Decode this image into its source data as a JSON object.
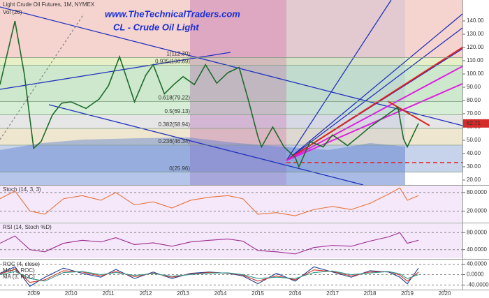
{
  "chart_data": [
    {
      "type": "line",
      "title": "Light Crude Oil Futures, 1M, NYMEX",
      "subtitle": "Vol (20)",
      "annotations": [
        "www.TheTechnicalTraders.com",
        "CL - Crude Oil Light"
      ],
      "x": [
        2008.1,
        2008.5,
        2008.75,
        2009.0,
        2009.2,
        2009.5,
        2009.75,
        2010.0,
        2010.4,
        2010.75,
        2011.0,
        2011.3,
        2011.7,
        2012.0,
        2012.2,
        2012.5,
        2012.75,
        2013.0,
        2013.3,
        2013.6,
        2013.9,
        2014.2,
        2014.5,
        2014.75,
        2015.0,
        2015.1,
        2015.4,
        2015.7,
        2016.0,
        2016.1,
        2016.4,
        2016.75,
        2017.0,
        2017.4,
        2017.75,
        2018.0,
        2018.4,
        2018.75,
        2018.9,
        2019.0,
        2019.3
      ],
      "series": [
        {
          "name": "Light Crude Oil Futures",
          "color": "#1e6b2a",
          "values": [
            92,
            140,
            100,
            44,
            49,
            69,
            78,
            79,
            74,
            81,
            91,
            113,
            79,
            99,
            107,
            85,
            92,
            98,
            92,
            107,
            93,
            101,
            105,
            80,
            53,
            45,
            60,
            45,
            37,
            30,
            49,
            45,
            54,
            46,
            54,
            60,
            68,
            75,
            51,
            45,
            62.71
          ]
        }
      ],
      "last_price": 62.71,
      "fib_levels": [
        {
          "label": "0(25.96)",
          "value": 25.96,
          "color": "#c7d3ea"
        },
        {
          "label": "0.236(46.34)",
          "value": 46.34,
          "color": "#efe6cf"
        },
        {
          "label": "0.382(58.94)",
          "value": 58.94,
          "color": "#e6e6e6"
        },
        {
          "label": "0.5(69.13)",
          "value": 69.13,
          "color": "#d6eed6"
        },
        {
          "label": "0.618(79.22)",
          "value": 79.22,
          "color": "#cde8cd"
        },
        {
          "label": "0.935(106.69)",
          "value": 106.69,
          "color": "#e6efc6"
        },
        {
          "label": "1(112.30)",
          "value": 112.3,
          "color": "#f5d3cf"
        }
      ],
      "xlim": [
        2008.1,
        2021.0
      ],
      "ylim": [
        16.3,
        155.8
      ],
      "yticks": [
        {
          "value": 20,
          "label": "20.00"
        },
        {
          "value": 30,
          "label": "30.00"
        },
        {
          "value": 40,
          "label": "40.00"
        },
        {
          "value": 50,
          "label": "50.00"
        },
        {
          "value": 60,
          "label": "60.00"
        },
        {
          "value": 70,
          "label": "70.00"
        },
        {
          "value": 80,
          "label": "80.00"
        },
        {
          "value": 90,
          "label": "90.00"
        },
        {
          "value": 100,
          "label": "100.00"
        },
        {
          "value": 110,
          "label": "110.00"
        },
        {
          "value": 120,
          "label": "120.00"
        },
        {
          "value": 130,
          "label": "130.00"
        },
        {
          "value": 140,
          "label": "140.00"
        }
      ]
    },
    {
      "type": "line",
      "title": "Stoch (14, 3, 3)",
      "x": [
        2008.1,
        2008.5,
        2008.9,
        2009.3,
        2009.8,
        2010.3,
        2010.8,
        2011.2,
        2011.7,
        2012.2,
        2012.7,
        2013.2,
        2013.7,
        2014.2,
        2014.6,
        2015.0,
        2015.5,
        2016.0,
        2016.5,
        2017.0,
        2017.5,
        2018.0,
        2018.5,
        2018.8,
        2019.0,
        2019.3
      ],
      "series": [
        {
          "name": "Stoch",
          "color": "#e8743b",
          "values": [
            60,
            85,
            20,
            10,
            60,
            70,
            55,
            80,
            40,
            50,
            30,
            55,
            65,
            70,
            60,
            10,
            15,
            5,
            25,
            35,
            25,
            45,
            75,
            95,
            55,
            70
          ]
        }
      ],
      "xlim": [
        2008.1,
        2021.0
      ],
      "ylim": [
        -15,
        100
      ],
      "yticks": [
        {
          "value": 80,
          "label": "80.0000"
        },
        {
          "value": 20,
          "label": "20.0000"
        }
      ]
    },
    {
      "type": "line",
      "title": "RSI (14, Stoch %D)",
      "x": [
        2008.1,
        2008.5,
        2008.9,
        2009.3,
        2009.8,
        2010.3,
        2010.8,
        2011.2,
        2011.7,
        2012.2,
        2012.7,
        2013.2,
        2013.7,
        2014.2,
        2014.6,
        2015.0,
        2015.5,
        2016.0,
        2016.5,
        2017.0,
        2017.5,
        2018.0,
        2018.5,
        2018.8,
        2019.0,
        2019.3
      ],
      "series": [
        {
          "name": "RSI",
          "color": "#9c2a8c",
          "values": [
            55,
            72,
            40,
            35,
            55,
            62,
            58,
            68,
            52,
            56,
            48,
            58,
            62,
            65,
            60,
            38,
            35,
            30,
            45,
            50,
            48,
            60,
            70,
            80,
            55,
            62
          ]
        }
      ],
      "xlim": [
        2008.1,
        2021.0
      ],
      "ylim": [
        20,
        100
      ],
      "yticks": [
        {
          "value": 80,
          "label": "80.0000"
        },
        {
          "value": 40,
          "label": "40.0000"
        }
      ]
    },
    {
      "type": "line",
      "x": [
        2008.1,
        2008.5,
        2008.9,
        2009.3,
        2009.8,
        2010.3,
        2010.8,
        2011.2,
        2011.7,
        2012.2,
        2012.7,
        2013.2,
        2013.7,
        2014.2,
        2014.6,
        2015.0,
        2015.5,
        2016.0,
        2016.5,
        2017.0,
        2017.5,
        2018.0,
        2018.5,
        2018.8,
        2019.0,
        2019.3
      ],
      "series": [
        {
          "name": "ROC (4, close)",
          "color": "#1f3b8c",
          "values": [
            5,
            30,
            -45,
            -10,
            25,
            5,
            -10,
            20,
            -15,
            10,
            -15,
            5,
            10,
            5,
            -5,
            -35,
            5,
            -25,
            30,
            10,
            -10,
            15,
            10,
            -10,
            -35,
            25
          ]
        },
        {
          "name": "MA (3, ROC)",
          "color": "#d9342b",
          "values": [
            3,
            20,
            -30,
            -20,
            15,
            10,
            -5,
            12,
            -8,
            6,
            -10,
            2,
            8,
            6,
            -2,
            -25,
            -5,
            -20,
            18,
            12,
            -5,
            10,
            12,
            -2,
            -25,
            10
          ]
        },
        {
          "name": "MA (3, ROC)",
          "color": "#2a9d8f",
          "values": [
            0,
            12,
            -15,
            -25,
            8,
            12,
            0,
            8,
            -3,
            4,
            -6,
            0,
            6,
            7,
            0,
            -15,
            -10,
            -15,
            8,
            14,
            0,
            6,
            12,
            3,
            -15,
            0
          ]
        }
      ],
      "xlim": [
        2008.1,
        2021.0
      ],
      "ylim": [
        -55,
        55
      ],
      "yticks": [
        {
          "value": 40,
          "label": "40.0000"
        },
        {
          "value": 0,
          "label": "0.0000"
        },
        {
          "value": -40,
          "label": "-40.0000"
        }
      ],
      "xticks": [
        2009,
        2010,
        2011,
        2012,
        2013,
        2014,
        2015,
        2016,
        2017,
        2018,
        2019,
        2020
      ]
    }
  ]
}
